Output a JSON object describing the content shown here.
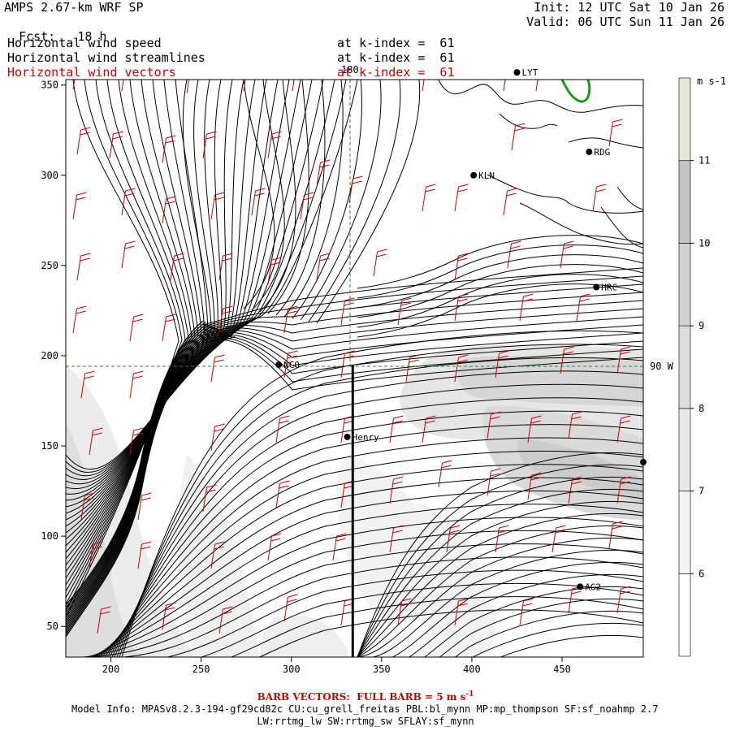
{
  "header": {
    "model": "AMPS 2.67-km WRF SP",
    "fcst_label": "Fcst:",
    "fcst_value": "18 h",
    "init": "Init: 12 UTC Sat 10 Jan 26",
    "valid": "Valid: 06 UTC Sun 11 Jan 26",
    "fields": [
      {
        "name": "Horizontal wind speed",
        "level": "at k-index =  61",
        "color": "#000000"
      },
      {
        "name": "Horizontal wind streamlines",
        "level": "at k-index =  61",
        "color": "#000000"
      },
      {
        "name": "Horizontal wind vectors",
        "level": "at k-index =  61",
        "color": "#cc0000"
      }
    ]
  },
  "map": {
    "x_ticks": [
      "200",
      "250",
      "300",
      "350",
      "400",
      "450"
    ],
    "y_ticks": [
      "50",
      "100",
      "150",
      "200",
      "250",
      "300",
      "350"
    ],
    "grid_labels": {
      "meridian": "180",
      "parallel": "90 W"
    },
    "stations": [
      {
        "label": "LYT",
        "x": 425,
        "y": 357
      },
      {
        "label": "RDG",
        "x": 465,
        "y": 313
      },
      {
        "label": "KLN",
        "x": 401,
        "y": 300
      },
      {
        "label": "HRC",
        "x": 469,
        "y": 238
      },
      {
        "label": "NCO",
        "x": 293,
        "y": 195
      },
      {
        "label": "Henry",
        "x": 331,
        "y": 155
      },
      {
        "label": "AG2",
        "x": 460,
        "y": 72
      },
      {
        "label": "",
        "x": 495,
        "y": 141
      }
    ],
    "cross_section": {
      "x": 334,
      "y_from": 33,
      "y_to": 195
    }
  },
  "colorbar": {
    "unit": "m s-1",
    "labels": [
      "6",
      "7",
      "8",
      "9",
      "10",
      "11"
    ],
    "colors": [
      "#ffffff",
      "#f3f3f3",
      "#e8e8e8",
      "#dcdcdc",
      "#d0d0d0",
      "#c4c4c4",
      "#e8e6d6"
    ]
  },
  "footer": {
    "barb": "BARB VECTORS:  FULL BARB = 5 m s",
    "barb_sup": "-1",
    "model_info": "Model Info: MPASv8.2.3-194-gf29cd82c CU:cu_grell_freitas PBL:bl_mynn MP:mp_thompson SF:sf_noahmp 2.7",
    "model_info2": "LW:rrtmg_lw SW:rrtmg_sw SFLAY:sf_mynn"
  }
}
